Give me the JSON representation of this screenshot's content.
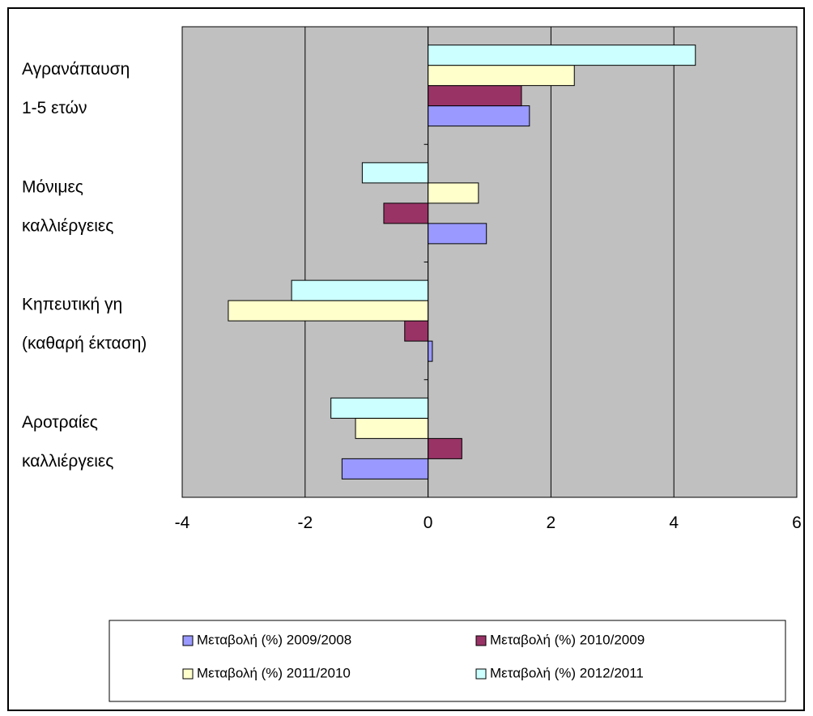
{
  "chart_data": {
    "type": "bar",
    "orientation": "horizontal",
    "categories": [
      [
        "Αγρανάπαυση",
        "1-5 ετών"
      ],
      [
        "Μόνιμες",
        "καλλιέργειες"
      ],
      [
        "Κηπευτική γη",
        "(καθαρή έκταση)"
      ],
      [
        "Αροτραίες",
        "καλλιέργειες"
      ]
    ],
    "series": [
      {
        "name": "Μεταβολή (%) 2009/2008",
        "color": "#9999ff",
        "values": [
          1.65,
          0.95,
          0.07,
          -1.4
        ]
      },
      {
        "name": "Μεταβολή (%) 2010/2009",
        "color": "#993366",
        "values": [
          1.52,
          -0.72,
          -0.38,
          0.55
        ]
      },
      {
        "name": "Μεταβολή (%) 2011/2010",
        "color": "#ffffcc",
        "values": [
          2.38,
          0.82,
          -3.25,
          -1.18
        ]
      },
      {
        "name": "Μεταβολή (%) 2012/2011",
        "color": "#ccffff",
        "values": [
          4.35,
          -1.07,
          -2.22,
          -1.58
        ]
      }
    ],
    "xlim": [
      -4,
      6
    ],
    "xticks": [
      "-4",
      "-2",
      "0",
      "2",
      "4",
      "6"
    ],
    "plot_background": "#c0c0c0",
    "grid": true,
    "legend_position": "bottom"
  }
}
